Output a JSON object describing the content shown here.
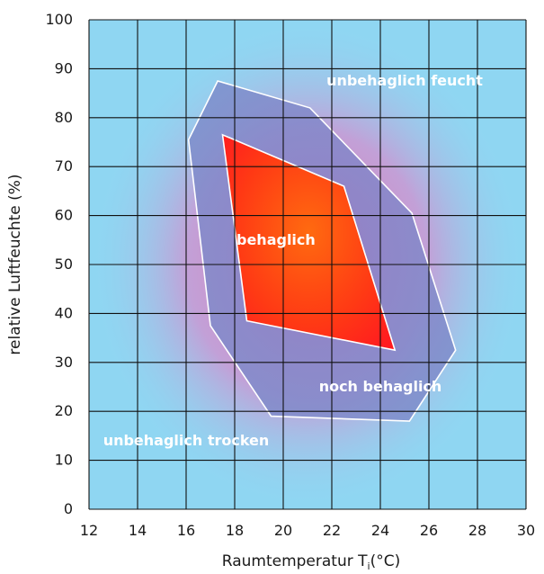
{
  "chart_data": {
    "type": "area",
    "title": "",
    "xlabel": "Raumtemperatur T",
    "xlabel_subscript": "i",
    "xlabel_unit": "(°C)",
    "ylabel": "relative Luftfeuchte (%)",
    "xlim": [
      12,
      30
    ],
    "ylim": [
      0,
      100
    ],
    "x_ticks": [
      12,
      14,
      16,
      18,
      20,
      22,
      24,
      26,
      28,
      30
    ],
    "y_ticks": [
      0,
      10,
      20,
      30,
      40,
      50,
      60,
      70,
      80,
      90,
      100
    ],
    "grid": true,
    "regions": [
      {
        "name": "noch behaglich",
        "points": [
          [
            17.3,
            87.5
          ],
          [
            21.1,
            82.0
          ],
          [
            25.3,
            60.5
          ],
          [
            27.1,
            32.5
          ],
          [
            25.2,
            18.0
          ],
          [
            19.5,
            19.0
          ],
          [
            17.0,
            37.5
          ],
          [
            16.1,
            75.5
          ]
        ]
      },
      {
        "name": "behaglich",
        "points": [
          [
            17.5,
            76.5
          ],
          [
            22.5,
            66.0
          ],
          [
            24.6,
            32.5
          ],
          [
            18.5,
            38.5
          ]
        ]
      }
    ],
    "annotations": [
      {
        "text": "unbehaglich feucht",
        "x": 25.0,
        "y": 87.5
      },
      {
        "text": "behaglich",
        "x": 19.7,
        "y": 55.0
      },
      {
        "text": "noch behaglich",
        "x": 24.0,
        "y": 25.0
      },
      {
        "text": "unbehaglich trocken",
        "x": 16.0,
        "y": 14.0
      }
    ],
    "colors": {
      "background": "#8fd6f2",
      "gradient_center": "#e07bb3",
      "outer_region": "#7c8ecb",
      "inner_region": "#ff2a1a",
      "grid": "#111111",
      "region_outline": "#ffffff"
    }
  }
}
